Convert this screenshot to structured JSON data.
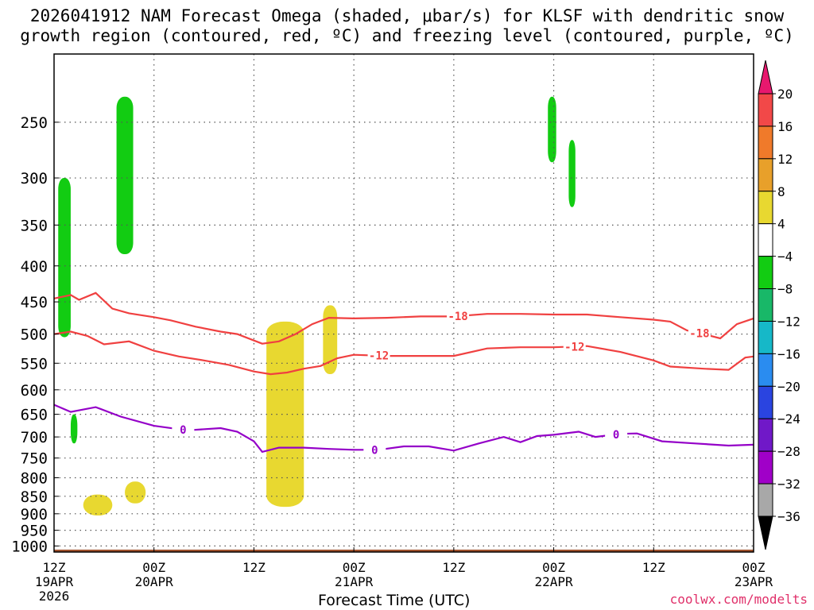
{
  "title_line1": "2026041912 NAM Forecast Omega (shaded, μbar/s) for KLSF with dendritic snow",
  "title_line2": "growth region (contoured, red, ºC) and freezing level (contoured, purple, ºC)",
  "credit": "coolwx.com/modelts",
  "chart_data": {
    "type": "contour",
    "xlabel": "Forecast Time (UTC)",
    "x_range_hours": [
      0,
      84
    ],
    "x_ticks": [
      {
        "hour": 0,
        "line1": "12Z",
        "line2": "19APR",
        "line3": "2026"
      },
      {
        "hour": 12,
        "line1": "00Z",
        "line2": "20APR",
        "line3": ""
      },
      {
        "hour": 24,
        "line1": "12Z",
        "line2": "",
        "line3": ""
      },
      {
        "hour": 36,
        "line1": "00Z",
        "line2": "21APR",
        "line3": ""
      },
      {
        "hour": 48,
        "line1": "12Z",
        "line2": "",
        "line3": ""
      },
      {
        "hour": 60,
        "line1": "00Z",
        "line2": "22APR",
        "line3": ""
      },
      {
        "hour": 72,
        "line1": "12Z",
        "line2": "",
        "line3": ""
      },
      {
        "hour": 84,
        "line1": "00Z",
        "line2": "23APR",
        "line3": ""
      }
    ],
    "y_scale": "pressure (log, inverted)",
    "y_range_hpa": [
      200,
      1020
    ],
    "y_ticks": [
      250,
      300,
      350,
      400,
      450,
      500,
      550,
      600,
      650,
      700,
      750,
      800,
      850,
      900,
      950,
      1000
    ],
    "colorbar": {
      "labels": [
        "20",
        "16",
        "12",
        "8",
        "4",
        "−4",
        "−8",
        "−12",
        "−16",
        "−20",
        "−24",
        "−28",
        "−32",
        "−36"
      ],
      "colors": [
        "#e8186e",
        "#f24848",
        "#f07a2a",
        "#e8a02a",
        "#e8d830",
        "#ffffff",
        "#12cc12",
        "#18b868",
        "#16b8c8",
        "#2a8cf0",
        "#2a44e0",
        "#7018c8",
        "#a000c8",
        "#a8a8a8",
        "#000000"
      ]
    },
    "contours": [
      {
        "label": "-18",
        "color": "#f04040",
        "label_hours": [
          48.5,
          77.5
        ],
        "points": [
          [
            0,
            445
          ],
          [
            2,
            440
          ],
          [
            3,
            447
          ],
          [
            5,
            437
          ],
          [
            7,
            460
          ],
          [
            9,
            467
          ],
          [
            12,
            473
          ],
          [
            14,
            478
          ],
          [
            17,
            488
          ],
          [
            20,
            496
          ],
          [
            22,
            500
          ],
          [
            25,
            516
          ],
          [
            27,
            512
          ],
          [
            29,
            500
          ],
          [
            31,
            484
          ],
          [
            33,
            474
          ],
          [
            36,
            475
          ],
          [
            40,
            474
          ],
          [
            44,
            472
          ],
          [
            48,
            472
          ],
          [
            52,
            468
          ],
          [
            56,
            468
          ],
          [
            60,
            469
          ],
          [
            64,
            469
          ],
          [
            68,
            473
          ],
          [
            72,
            477
          ],
          [
            74,
            480
          ],
          [
            76,
            494
          ],
          [
            78,
            500
          ],
          [
            80,
            507
          ],
          [
            82,
            484
          ],
          [
            84,
            475
          ]
        ]
      },
      {
        "label": "-12",
        "color": "#f04040",
        "label_hours": [
          39,
          62.5
        ],
        "points": [
          [
            0,
            500
          ],
          [
            2,
            496
          ],
          [
            4,
            503
          ],
          [
            6,
            517
          ],
          [
            9,
            512
          ],
          [
            12,
            528
          ],
          [
            15,
            538
          ],
          [
            18,
            545
          ],
          [
            21,
            553
          ],
          [
            24,
            565
          ],
          [
            26,
            570
          ],
          [
            28,
            567
          ],
          [
            30,
            560
          ],
          [
            32,
            555
          ],
          [
            34,
            541
          ],
          [
            36,
            535
          ],
          [
            40,
            537
          ],
          [
            44,
            537
          ],
          [
            48,
            537
          ],
          [
            52,
            524
          ],
          [
            56,
            522
          ],
          [
            60,
            522
          ],
          [
            64,
            520
          ],
          [
            68,
            530
          ],
          [
            72,
            545
          ],
          [
            74,
            556
          ],
          [
            78,
            560
          ],
          [
            81,
            562
          ],
          [
            83,
            540
          ],
          [
            84,
            538
          ]
        ]
      },
      {
        "label": "0",
        "color": "#9400c8",
        "label_hours": [
          15.5,
          38.5,
          67.5
        ],
        "points": [
          [
            0,
            630
          ],
          [
            2,
            645
          ],
          [
            5,
            635
          ],
          [
            8,
            655
          ],
          [
            12,
            675
          ],
          [
            16,
            685
          ],
          [
            20,
            680
          ],
          [
            22,
            688
          ],
          [
            24,
            710
          ],
          [
            25,
            735
          ],
          [
            27,
            725
          ],
          [
            30,
            725
          ],
          [
            33,
            728
          ],
          [
            36,
            730
          ],
          [
            39,
            730
          ],
          [
            42,
            722
          ],
          [
            45,
            722
          ],
          [
            48,
            732
          ],
          [
            51,
            715
          ],
          [
            54,
            700
          ],
          [
            56,
            712
          ],
          [
            58,
            698
          ],
          [
            60,
            695
          ],
          [
            63,
            688
          ],
          [
            65,
            700
          ],
          [
            68,
            693
          ],
          [
            70,
            692
          ],
          [
            73,
            710
          ],
          [
            77,
            715
          ],
          [
            81,
            720
          ],
          [
            84,
            718
          ]
        ]
      }
    ],
    "shaded_regions": [
      {
        "category": "−8 to −4",
        "color": "#12cc12",
        "hour_range": [
          0.5,
          2
        ],
        "pressure_range": [
          300,
          505
        ]
      },
      {
        "category": "−8 to −4",
        "color": "#12cc12",
        "hour_range": [
          7.5,
          9.5
        ],
        "pressure_range": [
          230,
          385
        ]
      },
      {
        "category": "−8 to −4",
        "color": "#12cc12",
        "hour_range": [
          59.3,
          60.3
        ],
        "pressure_range": [
          230,
          285
        ]
      },
      {
        "category": "−8 to −4",
        "color": "#12cc12",
        "hour_range": [
          61.8,
          62.6
        ],
        "pressure_range": [
          265,
          330
        ]
      },
      {
        "category": "−8 to −4",
        "color": "#12cc12",
        "hour_range": [
          2,
          2.8
        ],
        "pressure_range": [
          650,
          715
        ]
      },
      {
        "category": "4 to 8",
        "color": "#e8d830",
        "hour_range": [
          25.5,
          30
        ],
        "pressure_range": [
          480,
          880
        ]
      },
      {
        "category": "4 to 8",
        "color": "#e8d830",
        "hour_range": [
          32.3,
          34
        ],
        "pressure_range": [
          455,
          570
        ]
      },
      {
        "category": "4 to 8",
        "color": "#e8d830",
        "hour_range": [
          3.5,
          7
        ],
        "pressure_range": [
          845,
          905
        ]
      },
      {
        "category": "4 to 8",
        "color": "#e8d830",
        "hour_range": [
          8.5,
          11
        ],
        "pressure_range": [
          810,
          870
        ]
      }
    ],
    "ground_hpa": 1012
  }
}
